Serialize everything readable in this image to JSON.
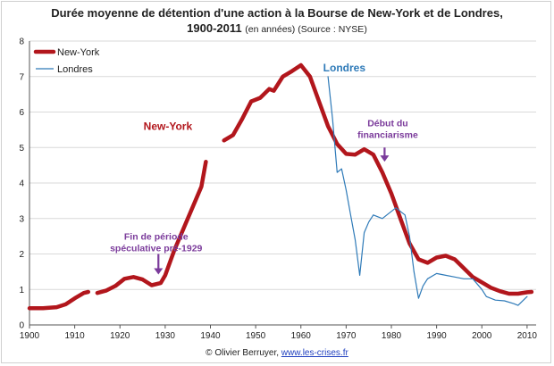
{
  "title": {
    "line1": "Durée moyenne de détention d'une action à la Bourse de New-York et de Londres,",
    "line2_bold": "1900-2011",
    "line2_small": "(en années) (Source : NYSE)"
  },
  "credit": {
    "text": "© Olivier Berruyer,",
    "link": "www.les-crises.fr"
  },
  "chart_data": {
    "type": "line",
    "title": "Durée moyenne de détention d'une action à la Bourse de New-York et de Londres, 1900-2011 (en années) (Source : NYSE)",
    "xlim": [
      1900,
      2012
    ],
    "ylim": [
      0,
      8
    ],
    "xticks": [
      "1900",
      "1910",
      "1920",
      "1930",
      "1940",
      "1950",
      "1960",
      "1970",
      "1980",
      "1990",
      "2000",
      "2010"
    ],
    "yticks": [
      "0",
      "1",
      "2",
      "3",
      "4",
      "5",
      "6",
      "7",
      "8"
    ],
    "grid": "horizontal",
    "legend": {
      "position": "top-left",
      "entries": [
        "New-York",
        "Londres"
      ]
    },
    "series": [
      {
        "name": "New-York",
        "color": "#b2161c",
        "segments": [
          [
            [
              1900,
              0.47
            ],
            [
              1903,
              0.47
            ],
            [
              1906,
              0.5
            ],
            [
              1908,
              0.58
            ],
            [
              1910,
              0.75
            ],
            [
              1912,
              0.9
            ],
            [
              1913,
              0.93
            ]
          ],
          [
            [
              1915,
              0.9
            ],
            [
              1917,
              0.97
            ],
            [
              1919,
              1.1
            ],
            [
              1921,
              1.3
            ],
            [
              1923,
              1.35
            ],
            [
              1925,
              1.28
            ],
            [
              1927,
              1.12
            ],
            [
              1929,
              1.18
            ],
            [
              1930,
              1.4
            ],
            [
              1932,
              2.1
            ],
            [
              1934,
              2.7
            ],
            [
              1936,
              3.3
            ],
            [
              1938,
              3.9
            ],
            [
              1939,
              4.6
            ]
          ],
          [
            [
              1943,
              5.2
            ],
            [
              1945,
              5.35
            ],
            [
              1947,
              5.8
            ],
            [
              1949,
              6.3
            ],
            [
              1951,
              6.4
            ],
            [
              1953,
              6.65
            ],
            [
              1954,
              6.6
            ],
            [
              1956,
              7.0
            ],
            [
              1958,
              7.15
            ],
            [
              1960,
              7.32
            ],
            [
              1962,
              7.0
            ],
            [
              1964,
              6.3
            ],
            [
              1966,
              5.6
            ],
            [
              1968,
              5.1
            ],
            [
              1970,
              4.82
            ],
            [
              1972,
              4.8
            ],
            [
              1974,
              4.95
            ],
            [
              1976,
              4.8
            ],
            [
              1978,
              4.3
            ],
            [
              1980,
              3.7
            ],
            [
              1982,
              3.0
            ],
            [
              1984,
              2.3
            ],
            [
              1986,
              1.85
            ],
            [
              1988,
              1.75
            ],
            [
              1990,
              1.9
            ],
            [
              1992,
              1.95
            ],
            [
              1994,
              1.85
            ],
            [
              1996,
              1.6
            ],
            [
              1998,
              1.35
            ],
            [
              2000,
              1.2
            ],
            [
              2002,
              1.05
            ],
            [
              2004,
              0.95
            ],
            [
              2006,
              0.88
            ],
            [
              2008,
              0.88
            ],
            [
              2010,
              0.92
            ],
            [
              2011,
              0.93
            ]
          ]
        ]
      },
      {
        "name": "Londres",
        "color": "#2e7ab8",
        "segments": [
          [
            [
              1966,
              7.0
            ],
            [
              1967,
              5.8
            ],
            [
              1968,
              4.3
            ],
            [
              1969,
              4.4
            ],
            [
              1970,
              3.8
            ],
            [
              1971,
              3.1
            ],
            [
              1972,
              2.4
            ],
            [
              1973,
              1.4
            ],
            [
              1974,
              2.6
            ],
            [
              1975,
              2.9
            ],
            [
              1976,
              3.1
            ],
            [
              1977,
              3.05
            ],
            [
              1978,
              3.0
            ],
            [
              1979,
              3.1
            ],
            [
              1980,
              3.2
            ],
            [
              1981,
              3.3
            ],
            [
              1982,
              3.2
            ],
            [
              1983,
              3.1
            ],
            [
              1984,
              2.5
            ],
            [
              1985,
              1.5
            ],
            [
              1986,
              0.75
            ],
            [
              1987,
              1.1
            ],
            [
              1988,
              1.3
            ],
            [
              1990,
              1.45
            ],
            [
              1992,
              1.4
            ],
            [
              1994,
              1.35
            ],
            [
              1996,
              1.3
            ],
            [
              1998,
              1.3
            ],
            [
              2000,
              1.0
            ],
            [
              2001,
              0.8
            ],
            [
              2003,
              0.7
            ],
            [
              2005,
              0.68
            ],
            [
              2007,
              0.6
            ],
            [
              2008,
              0.55
            ],
            [
              2010,
              0.8
            ]
          ]
        ]
      }
    ],
    "annotations": [
      {
        "id": "label-ny",
        "text": "New-York",
        "color": "#b2161c",
        "x": 1930.6,
        "y": 5.5
      },
      {
        "id": "label-londres",
        "text": "Londres",
        "color": "#2e7ab8",
        "x": 1969.6,
        "y": 7.15
      },
      {
        "id": "fin-periode",
        "text": "Fin de période",
        "text2": "spéculative pré-1929",
        "color": "#7b3b9b",
        "x": 1928.0,
        "y": 2.4,
        "arrow": [
          [
            1928.5,
            2.0
          ],
          [
            1928.5,
            1.42
          ]
        ]
      },
      {
        "id": "debut-financiarisme",
        "text": "Début du",
        "text2": "financiarisme",
        "color": "#7b3b9b",
        "x": 1979.2,
        "y": 5.6,
        "arrow": [
          [
            1978.5,
            5.0
          ],
          [
            1978.5,
            4.6
          ]
        ]
      }
    ]
  }
}
